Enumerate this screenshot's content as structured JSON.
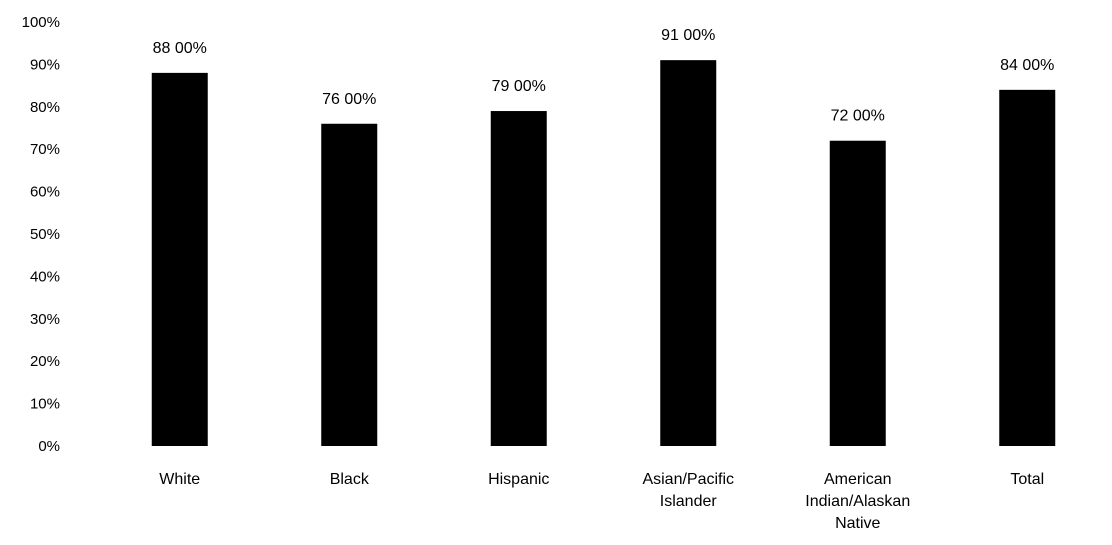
{
  "chart_data": {
    "type": "bar",
    "title": "",
    "xlabel": "",
    "ylabel": "",
    "ylim": [
      0,
      100
    ],
    "y_ticks": [
      {
        "value": 0,
        "label": "0%"
      },
      {
        "value": 10,
        "label": "10%"
      },
      {
        "value": 20,
        "label": "20%"
      },
      {
        "value": 30,
        "label": "30%"
      },
      {
        "value": 40,
        "label": "40%"
      },
      {
        "value": 50,
        "label": "50%"
      },
      {
        "value": 60,
        "label": "60%"
      },
      {
        "value": 70,
        "label": "70%"
      },
      {
        "value": 80,
        "label": "80%"
      },
      {
        "value": 90,
        "label": "90%"
      },
      {
        "value": 100,
        "label": "100%"
      }
    ],
    "categories": [
      [
        "White"
      ],
      [
        "Black"
      ],
      [
        "Hispanic"
      ],
      [
        "Asian/Pacific",
        "Islander"
      ],
      [
        "American",
        "Indian/Alaskan",
        "Native"
      ],
      [
        "Total"
      ]
    ],
    "values": [
      88,
      76,
      79,
      91,
      72,
      84
    ],
    "data_labels": [
      "88 00%",
      "76 00%",
      "79 00%",
      "91 00%",
      "72 00%",
      "84 00%"
    ],
    "bar_color": "#000000",
    "grid": false,
    "legend": "none"
  }
}
